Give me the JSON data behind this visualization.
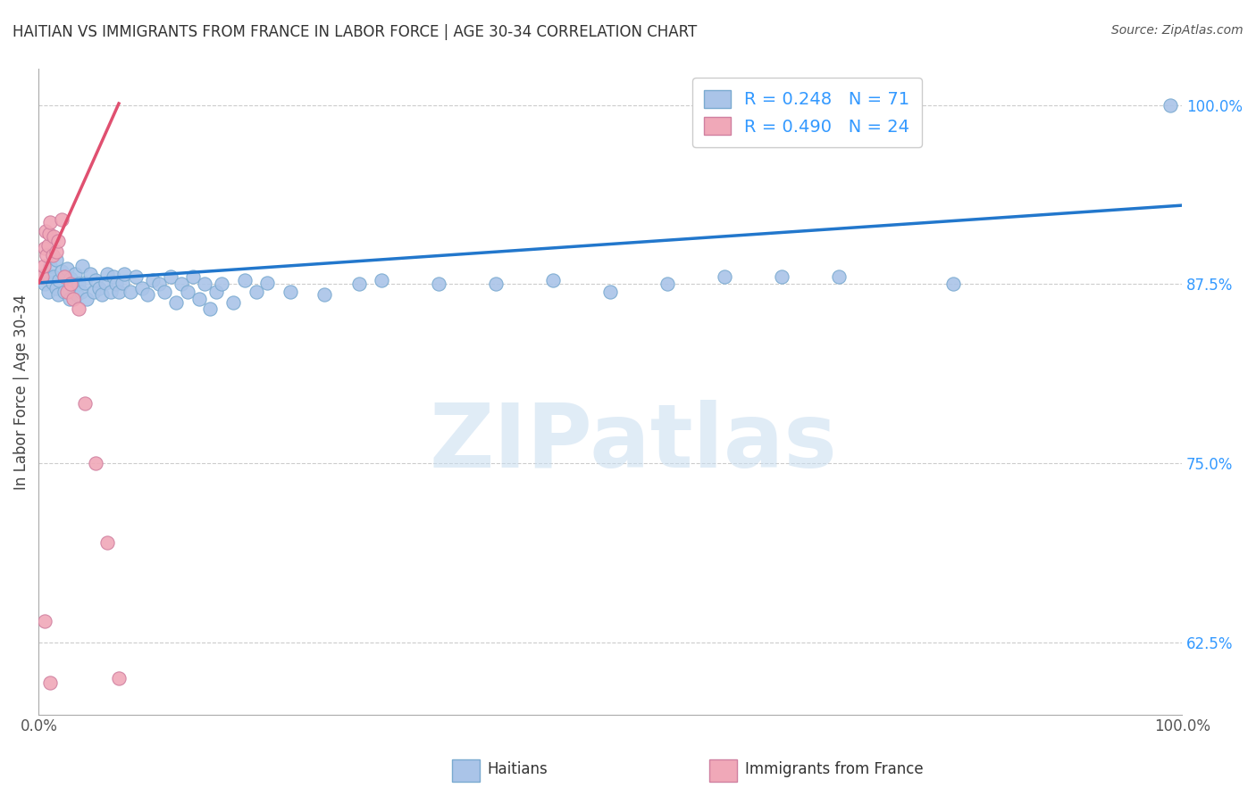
{
  "title": "HAITIAN VS IMMIGRANTS FROM FRANCE IN LABOR FORCE | AGE 30-34 CORRELATION CHART",
  "source": "Source: ZipAtlas.com",
  "ylabel": "In Labor Force | Age 30-34",
  "xlim": [
    0.0,
    1.0
  ],
  "ylim": [
    0.575,
    1.025
  ],
  "ytick_vals": [
    0.625,
    0.75,
    0.875,
    1.0
  ],
  "ytick_labels": [
    "62.5%",
    "75.0%",
    "87.5%",
    "100.0%"
  ],
  "xtick_vals": [
    0.0,
    1.0
  ],
  "xtick_labels": [
    "0.0%",
    "100.0%"
  ],
  "haitian_color": "#aac4e8",
  "haitian_edgecolor": "#7aaad0",
  "france_color": "#f0a8b8",
  "france_edgecolor": "#d080a0",
  "blue_line_color": "#2277cc",
  "pink_line_color": "#e05070",
  "grid_color": "#cccccc",
  "background_color": "#ffffff",
  "right_tick_color": "#3399ff",
  "scatter_size": 120,
  "legend_fontsize": 14,
  "tick_fontsize": 12,
  "axis_label_fontsize": 12,
  "title_fontsize": 12,
  "watermark_text": "ZIPatlas",
  "legend_label_0": "R = 0.248   N = 71",
  "legend_label_1": "R = 0.490   N = 24",
  "haitian_x": [
    0.005,
    0.007,
    0.008,
    0.01,
    0.012,
    0.013,
    0.015,
    0.015,
    0.017,
    0.018,
    0.02,
    0.022,
    0.025,
    0.027,
    0.028,
    0.03,
    0.032,
    0.033,
    0.035,
    0.037,
    0.038,
    0.04,
    0.042,
    0.045,
    0.048,
    0.05,
    0.053,
    0.055,
    0.058,
    0.06,
    0.063,
    0.065,
    0.068,
    0.07,
    0.073,
    0.075,
    0.08,
    0.085,
    0.09,
    0.095,
    0.1,
    0.105,
    0.11,
    0.115,
    0.12,
    0.125,
    0.13,
    0.135,
    0.14,
    0.145,
    0.15,
    0.155,
    0.16,
    0.17,
    0.18,
    0.19,
    0.2,
    0.22,
    0.25,
    0.28,
    0.3,
    0.35,
    0.4,
    0.45,
    0.5,
    0.55,
    0.6,
    0.65,
    0.7,
    0.8,
    0.99
  ],
  "haitian_y": [
    0.875,
    0.882,
    0.87,
    0.888,
    0.876,
    0.88,
    0.872,
    0.892,
    0.868,
    0.878,
    0.884,
    0.87,
    0.886,
    0.865,
    0.879,
    0.873,
    0.882,
    0.868,
    0.875,
    0.87,
    0.888,
    0.876,
    0.865,
    0.882,
    0.87,
    0.878,
    0.872,
    0.868,
    0.876,
    0.882,
    0.87,
    0.88,
    0.875,
    0.87,
    0.876,
    0.882,
    0.87,
    0.88,
    0.872,
    0.868,
    0.878,
    0.875,
    0.87,
    0.88,
    0.862,
    0.875,
    0.87,
    0.88,
    0.865,
    0.875,
    0.858,
    0.87,
    0.875,
    0.862,
    0.878,
    0.87,
    0.876,
    0.87,
    0.868,
    0.875,
    0.878,
    0.875,
    0.875,
    0.878,
    0.87,
    0.875,
    0.88,
    0.88,
    0.88,
    0.875,
    1.0
  ],
  "france_x": [
    0.003,
    0.004,
    0.005,
    0.006,
    0.007,
    0.008,
    0.009,
    0.01,
    0.012,
    0.013,
    0.015,
    0.017,
    0.02,
    0.022,
    0.025,
    0.028,
    0.03,
    0.035,
    0.04,
    0.05,
    0.06,
    0.005,
    0.07,
    0.01
  ],
  "france_y": [
    0.88,
    0.888,
    0.9,
    0.912,
    0.895,
    0.902,
    0.91,
    0.918,
    0.895,
    0.908,
    0.898,
    0.905,
    0.92,
    0.88,
    0.87,
    0.875,
    0.865,
    0.858,
    0.792,
    0.75,
    0.695,
    0.64,
    0.6,
    0.597
  ],
  "blue_line_x": [
    0.0,
    1.0
  ],
  "blue_line_y": [
    0.876,
    0.93
  ],
  "pink_line_x": [
    0.0,
    0.07
  ],
  "pink_line_y": [
    0.876,
    1.001
  ]
}
